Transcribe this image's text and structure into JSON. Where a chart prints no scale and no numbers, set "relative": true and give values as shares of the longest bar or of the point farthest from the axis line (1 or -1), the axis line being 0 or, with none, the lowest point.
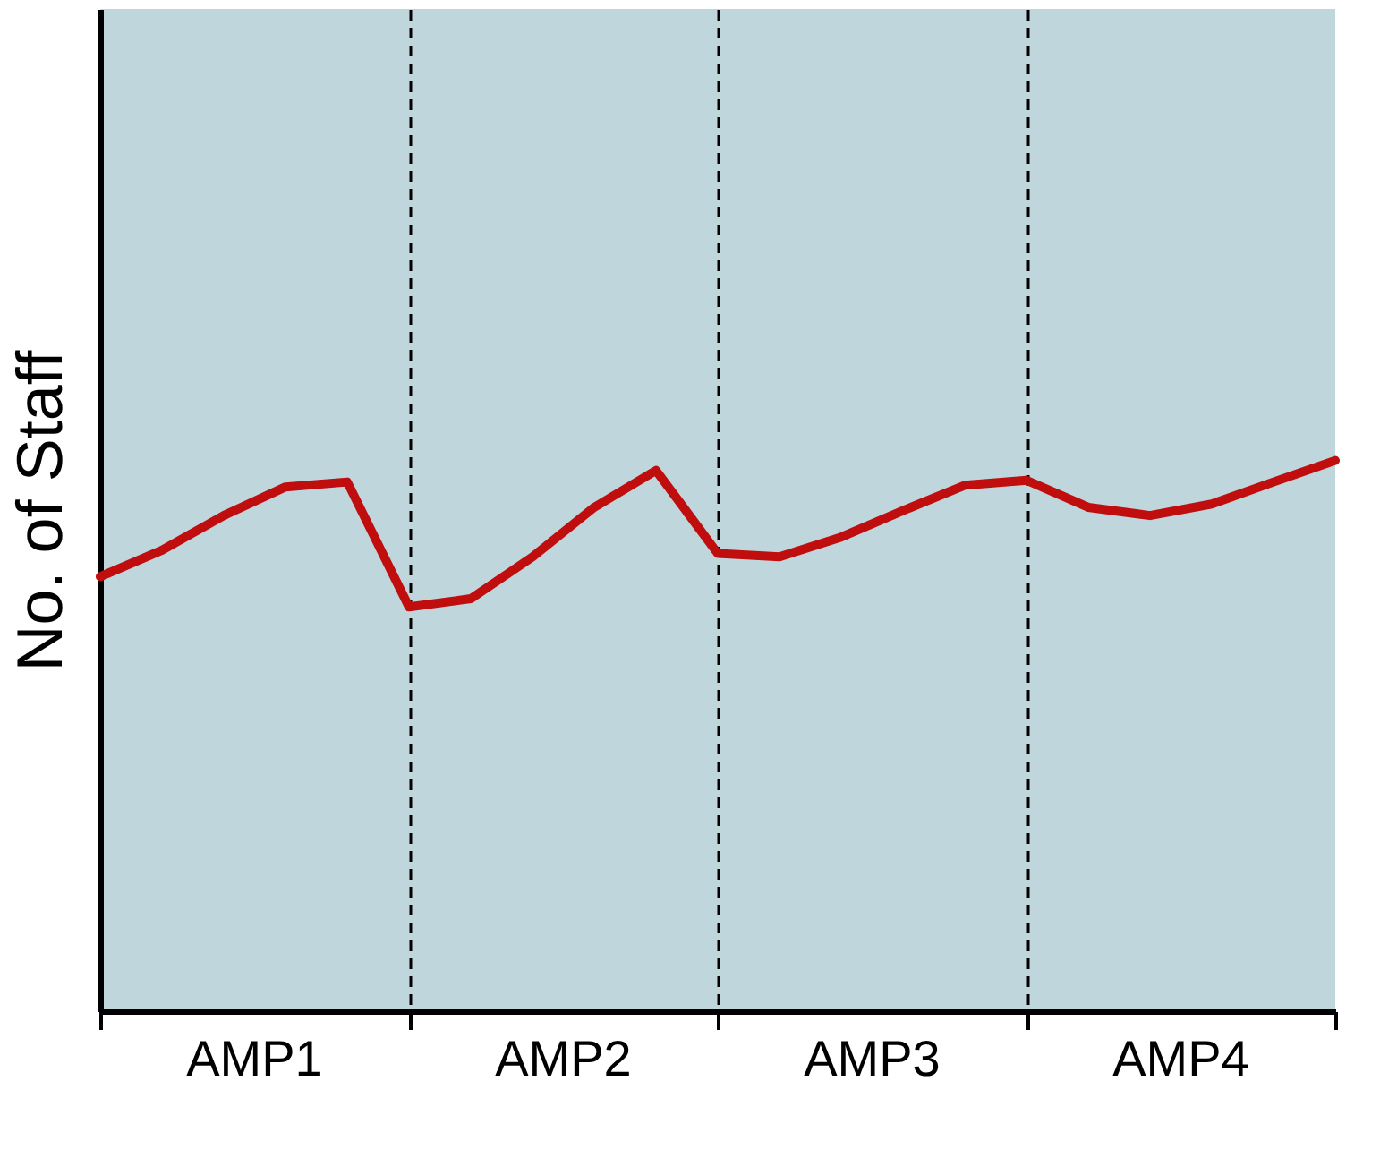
{
  "chart_data": {
    "type": "line",
    "ylabel": "No. of Staff",
    "relative": true,
    "categories": [
      null,
      null,
      null,
      null,
      null,
      null,
      null,
      null,
      null,
      null,
      null,
      null,
      null,
      null,
      null,
      null,
      null,
      null,
      null,
      null,
      null
    ],
    "series": [
      {
        "color": "#c00d0d",
        "values": [
          0.789,
          0.837,
          0.9,
          0.952,
          0.961,
          0.734,
          0.749,
          0.825,
          0.915,
          0.982,
          0.831,
          0.825,
          0.861,
          0.909,
          0.955,
          0.964,
          0.915,
          0.9,
          0.921,
          0.961,
          1.0
        ]
      }
    ],
    "annotations": [
      "AMP1",
      "AMP2",
      "AMP3",
      "AMP4"
    ],
    "grid": "x",
    "tick_labels": false,
    "line_style": "solid",
    "marker": "none"
  }
}
